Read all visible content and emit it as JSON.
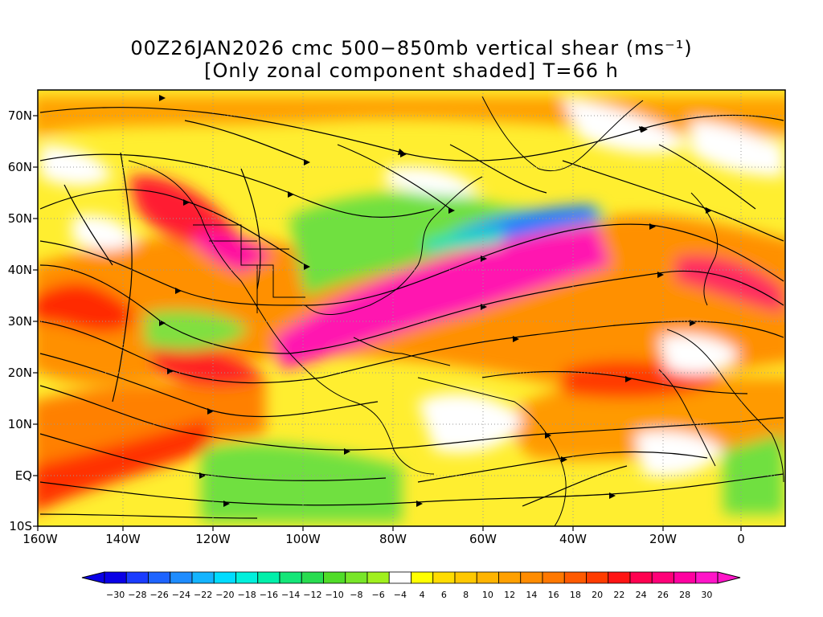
{
  "title": {
    "line1": "00Z26JAN2026 cmc 500−850mb vertical shear (ms⁻¹)",
    "line2": "[Only zonal component shaded] T=66 h"
  },
  "lat_labels": [
    "70N",
    "60N",
    "50N",
    "40N",
    "30N",
    "20N",
    "10N",
    "EQ",
    "10S"
  ],
  "lon_labels": [
    "160W",
    "140W",
    "120W",
    "100W",
    "80W",
    "60W",
    "40W",
    "20W",
    "0"
  ],
  "colorbar": {
    "labels": [
      "−30",
      "−28",
      "−26",
      "−24",
      "−22",
      "−20",
      "−18",
      "−16",
      "−14",
      "−12",
      "−10",
      "−8",
      "−6",
      "−4",
      "4",
      "6",
      "8",
      "10",
      "12",
      "14",
      "16",
      "18",
      "20",
      "22",
      "24",
      "26",
      "28",
      "30"
    ],
    "colors": [
      "#0a00e6",
      "#1a3cff",
      "#1e64ff",
      "#1e8cff",
      "#14b4ff",
      "#00dcff",
      "#00f0dc",
      "#00f0aa",
      "#14e678",
      "#28dc50",
      "#50dc28",
      "#78e628",
      "#a0f01e",
      "#ffffff",
      "#ffff00",
      "#ffdc00",
      "#ffc800",
      "#ffb400",
      "#ffa000",
      "#ff8c00",
      "#ff7800",
      "#ff5a00",
      "#ff3c00",
      "#ff1414",
      "#ff0050",
      "#ff0078",
      "#ff00a0",
      "#ff14c8"
    ]
  }
}
